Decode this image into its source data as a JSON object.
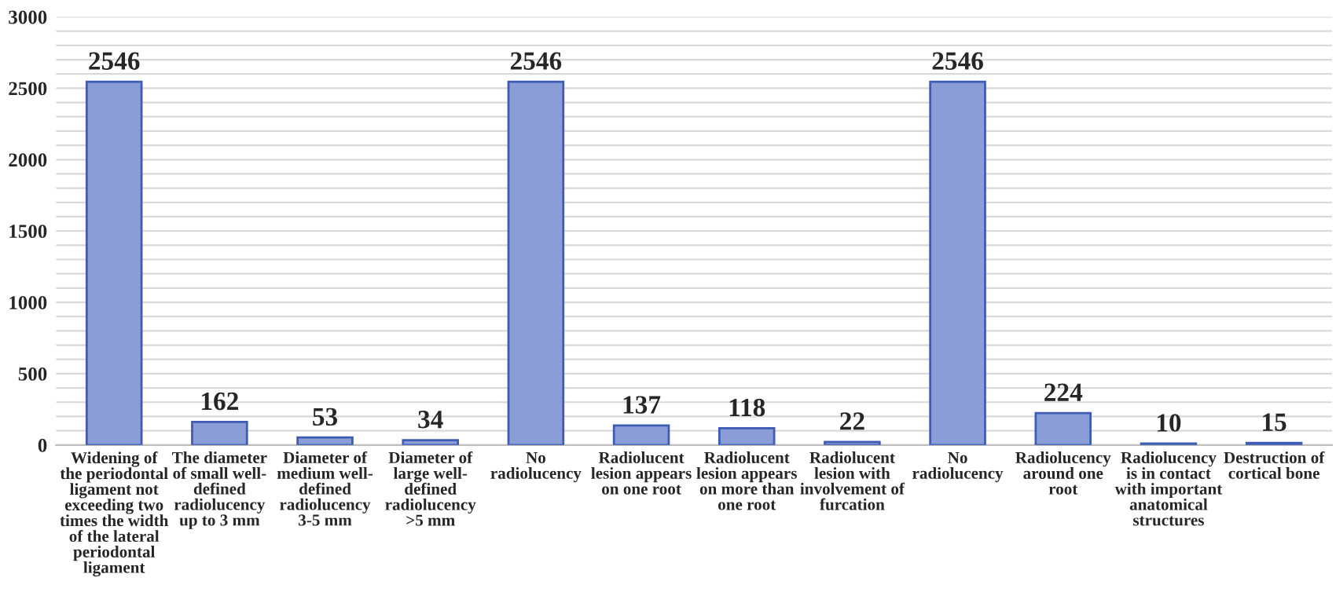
{
  "chart_data": {
    "type": "bar",
    "categories": [
      "Widening of\nthe periodontal\nligament not\nexceeding two\ntimes the width\nof the lateral\nperiodontal\nligament",
      "The diameter\nof small well-\ndefined\nradiolucency\nup to 3 mm",
      "Diameter of\nmedium well-\ndefined\nradiolucency\n3-5 mm",
      "Diameter of\nlarge well-\ndefined\nradiolucency\n>5 mm",
      "No\nradiolucency",
      "Radiolucent\nlesion appears\non one root",
      "Radiolucent\nlesion appears\non more than\none root",
      "Radiolucent\nlesion with\ninvolvement of\nfurcation",
      "No\nradiolucency",
      "Radiolucency\naround one\nroot",
      "Radiolucency\nis in contact\nwith important\nanatomical\nstructures",
      "Destruction of\ncortical bone"
    ],
    "values": [
      2546,
      162,
      53,
      34,
      2546,
      137,
      118,
      22,
      2546,
      224,
      10,
      15
    ],
    "color": "#8a9dd6",
    "data_labels": true,
    "ylim": [
      0,
      3000
    ],
    "yticks": [
      0,
      {
        "value": 100,
        "label": null
      },
      {
        "value": 200,
        "label": null
      },
      {
        "value": 300,
        "label": null
      },
      {
        "value": 400,
        "label": null
      },
      500,
      {
        "value": 600,
        "label": null
      },
      {
        "value": 700,
        "label": null
      },
      {
        "value": 800,
        "label": null
      },
      {
        "value": 900,
        "label": null
      },
      1000,
      {
        "value": 1100,
        "label": null
      },
      {
        "value": 1200,
        "label": null
      },
      {
        "value": 1300,
        "label": null
      },
      {
        "value": 1400,
        "label": null
      },
      1500,
      {
        "value": 1600,
        "label": null
      },
      {
        "value": 1700,
        "label": null
      },
      {
        "value": 1800,
        "label": null
      },
      {
        "value": 1900,
        "label": null
      },
      2000,
      {
        "value": 2100,
        "label": null
      },
      {
        "value": 2200,
        "label": null
      },
      {
        "value": 2300,
        "label": null
      },
      {
        "value": 2400,
        "label": null
      },
      2500,
      {
        "value": 2600,
        "label": null
      },
      {
        "value": 2700,
        "label": null
      },
      {
        "value": 2800,
        "label": null
      },
      {
        "value": 2900,
        "label": null
      },
      3000
    ],
    "grid": "y"
  }
}
